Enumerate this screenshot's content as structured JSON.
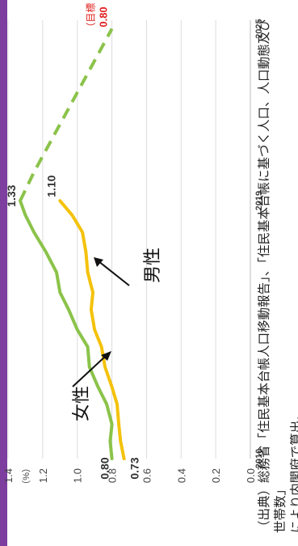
{
  "colors": {
    "accent_bar": "#7d3ea0",
    "female_line": "#8bc34a",
    "male_line": "#f4c20d",
    "target_label": "#e02020",
    "grid": "#dcdcdc",
    "axis_text": "#444444"
  },
  "chart_data": {
    "type": "line",
    "y_unit": "（%）",
    "ylim": [
      0.0,
      1.4
    ],
    "y_ticks": [
      "0.0",
      "0.2",
      "0.4",
      "0.6",
      "0.8",
      "1.0",
      "1.2",
      "1.4"
    ],
    "x_tick_labels": [
      "2010",
      "2019",
      "2025"
    ],
    "xlim": [
      2010,
      2025.3
    ],
    "grid": "horizontal",
    "series": [
      {
        "name": "女性",
        "style": "solid",
        "x": [
          2010,
          2010.6,
          2011.2,
          2011.9,
          2012.5,
          2013.2,
          2013.9,
          2014.5,
          2015.2,
          2015.8,
          2016.5,
          2017.2,
          2017.9,
          2018.5,
          2019
        ],
        "values": [
          0.8,
          0.81,
          0.8,
          0.83,
          0.88,
          0.93,
          0.94,
          1.0,
          1.05,
          1.1,
          1.12,
          1.18,
          1.25,
          1.3,
          1.33
        ]
      },
      {
        "name": "女性（目標）",
        "style": "dashed",
        "x": [
          2019,
          2020,
          2021,
          2022,
          2023,
          2024,
          2025
        ],
        "values": [
          1.33,
          1.25,
          1.16,
          1.07,
          0.98,
          0.89,
          0.8
        ]
      },
      {
        "name": "男性",
        "style": "solid",
        "x": [
          2010,
          2010.6,
          2011.2,
          2011.9,
          2012.5,
          2013.2,
          2013.9,
          2014.5,
          2015.2,
          2015.8,
          2016.5,
          2017.2,
          2017.9,
          2018.5,
          2019
        ],
        "values": [
          0.73,
          0.75,
          0.76,
          0.77,
          0.8,
          0.84,
          0.86,
          0.9,
          0.92,
          0.91,
          0.94,
          0.95,
          0.97,
          1.03,
          1.1
        ]
      }
    ],
    "data_labels": {
      "female_start": "0.80",
      "male_start": "0.73",
      "female_2019": "1.33",
      "male_2019": "1.10",
      "target_prefix": "（目標",
      "target_value": "0.80"
    },
    "annotations": {
      "female": "女性",
      "male": "男性"
    },
    "source_note": "（出典）総務省「住民基本台帳人口移動報告」、「住民基本台帳に基づく人口、人口動態及び世帯数」\nにより内閣府で算出。"
  }
}
